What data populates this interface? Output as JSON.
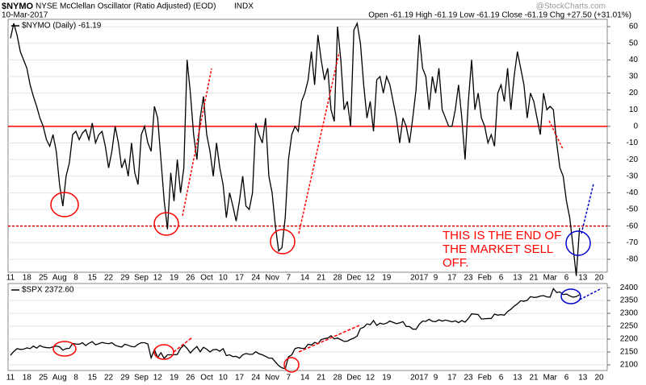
{
  "header": {
    "symbol": "$NYMO",
    "title": "NYSE McClellan Oscillator (Ratio Adjusted) (EOD)",
    "exchange": "INDX",
    "date": "10-Mar-2017",
    "quote": "Open -61.19  High -61.19  Low -61.19  Close -61.19  Chg +27.50 (+31.01%)",
    "watermark": "@StockCharts.com"
  },
  "annotation": [
    "THIS IS THE END OF",
    "THE MARKET SELL",
    "OFF."
  ],
  "chart_data": [
    {
      "type": "line",
      "grid": true,
      "categories": [
        "11",
        null,
        null,
        null,
        null,
        "18",
        null,
        null,
        null,
        null,
        "25",
        null,
        null,
        null,
        null,
        "Aug",
        null,
        null,
        null,
        null,
        "8",
        null,
        null,
        null,
        null,
        "15",
        null,
        null,
        null,
        null,
        "22",
        null,
        null,
        null,
        null,
        "29",
        null,
        null,
        null,
        null,
        "Sep",
        null,
        null,
        null,
        null,
        "12",
        null,
        null,
        null,
        null,
        "19",
        null,
        null,
        null,
        null,
        "26",
        null,
        null,
        null,
        null,
        "Oct",
        null,
        null,
        null,
        null,
        "10",
        null,
        null,
        null,
        null,
        "17",
        null,
        null,
        null,
        null,
        "24",
        null,
        null,
        null,
        null,
        "Nov",
        null,
        null,
        null,
        null,
        "7",
        null,
        null,
        null,
        null,
        "14",
        null,
        null,
        null,
        null,
        "21",
        null,
        null,
        null,
        null,
        "28",
        null,
        null,
        null,
        null,
        "Dec",
        null,
        null,
        null,
        null,
        "12",
        null,
        null,
        null,
        null,
        "19",
        null,
        null,
        null,
        null,
        null,
        null,
        null,
        null,
        null,
        "2017",
        null,
        null,
        null,
        null,
        "9",
        null,
        null,
        null,
        null,
        "17",
        null,
        null,
        null,
        null,
        "23",
        null,
        null,
        null,
        null,
        "Feb",
        null,
        null,
        null,
        null,
        "6",
        null,
        null,
        null,
        null,
        "13",
        null,
        null,
        null,
        null,
        "21",
        null,
        null,
        null,
        null,
        "Mar",
        null,
        null,
        null,
        null,
        "6",
        null,
        null,
        null,
        null,
        "13",
        null,
        null,
        null,
        null,
        "20"
      ],
      "series": [
        {
          "name": "$NYMO (Daily) -61.19",
          "color": "#000000",
          "values": [
            53,
            62,
            55,
            45,
            40,
            35,
            25,
            18,
            12,
            5,
            0,
            -8,
            -12,
            -5,
            -15,
            -35,
            -48,
            -30,
            -22,
            -5,
            -3,
            -8,
            -4,
            -2,
            -8,
            2,
            -10,
            -5,
            -3,
            -12,
            -25,
            -15,
            0,
            -10,
            -25,
            -20,
            -30,
            -10,
            -28,
            -35,
            -5,
            0,
            -10,
            -15,
            12,
            5,
            -20,
            -45,
            -62,
            -28,
            -45,
            -20,
            -40,
            -25,
            40,
            20,
            -5,
            -20,
            5,
            18,
            -5,
            -15,
            -30,
            -10,
            -25,
            -35,
            -55,
            -40,
            -48,
            -57,
            -45,
            -30,
            -48,
            -50,
            -40,
            2,
            -5,
            -10,
            5,
            -30,
            -40,
            -60,
            -75,
            -73,
            -55,
            -20,
            -5,
            0,
            -3,
            15,
            20,
            28,
            45,
            25,
            55,
            40,
            28,
            35,
            10,
            3,
            60,
            40,
            10,
            15,
            0,
            58,
            62,
            50,
            25,
            5,
            15,
            -3,
            28,
            30,
            20,
            30,
            25,
            15,
            5,
            -10,
            5,
            0,
            -10,
            5,
            22,
            55,
            35,
            30,
            10,
            30,
            20,
            35,
            10,
            5,
            0,
            0,
            10,
            25,
            5,
            -20,
            15,
            40,
            10,
            20,
            5,
            0,
            -10,
            -5,
            -12,
            20,
            25,
            15,
            35,
            10,
            30,
            45,
            35,
            25,
            5,
            20,
            15,
            5,
            -5,
            20,
            10,
            12,
            10,
            -10,
            -25,
            -30,
            -45,
            -55,
            -72,
            -90,
            -61.19,
            null,
            null,
            null,
            null,
            null,
            null
          ]
        }
      ],
      "ylim": [
        -87.8,
        64.4
      ],
      "yticks": [
        -80,
        -70,
        -60,
        -50,
        -40,
        -30,
        -20,
        -10,
        0,
        10,
        20,
        30,
        40,
        50,
        60
      ],
      "ref_lines": [
        {
          "value": 0,
          "color": "#ff0000",
          "dash": false
        },
        {
          "value": -60,
          "color": "#dd0000",
          "dash": true
        }
      ]
    },
    {
      "type": "line",
      "grid": true,
      "categories": [
        "11",
        null,
        null,
        null,
        null,
        "18",
        null,
        null,
        null,
        null,
        "25",
        null,
        null,
        null,
        null,
        "Aug",
        null,
        null,
        null,
        null,
        "8",
        null,
        null,
        null,
        null,
        "15",
        null,
        null,
        null,
        null,
        "22",
        null,
        null,
        null,
        null,
        "29",
        null,
        null,
        null,
        null,
        "Sep",
        null,
        null,
        null,
        null,
        "12",
        null,
        null,
        null,
        null,
        "19",
        null,
        null,
        null,
        null,
        "26",
        null,
        null,
        null,
        null,
        "Oct",
        null,
        null,
        null,
        null,
        "10",
        null,
        null,
        null,
        null,
        "17",
        null,
        null,
        null,
        null,
        "24",
        null,
        null,
        null,
        null,
        "Nov",
        null,
        null,
        null,
        null,
        "7",
        null,
        null,
        null,
        null,
        "14",
        null,
        null,
        null,
        null,
        "21",
        null,
        null,
        null,
        null,
        "28",
        null,
        null,
        null,
        null,
        "Dec",
        null,
        null,
        null,
        null,
        "12",
        null,
        null,
        null,
        null,
        "19",
        null,
        null,
        null,
        null,
        null,
        null,
        null,
        null,
        null,
        "2017",
        null,
        null,
        null,
        null,
        "9",
        null,
        null,
        null,
        null,
        "17",
        null,
        null,
        null,
        null,
        "23",
        null,
        null,
        null,
        null,
        "Feb",
        null,
        null,
        null,
        null,
        "6",
        null,
        null,
        null,
        null,
        "13",
        null,
        null,
        null,
        null,
        "21",
        null,
        null,
        null,
        null,
        "Mar",
        null,
        null,
        null,
        null,
        "6",
        null,
        null,
        null,
        null,
        "13",
        null,
        null,
        null,
        null,
        "20"
      ],
      "series": [
        {
          "name": "$SPX 2372.60",
          "color": "#000000",
          "values": [
            2137,
            2152,
            2163,
            2160,
            2161,
            2166,
            2163,
            2173,
            2165,
            2175,
            2169,
            2167,
            2166,
            2170,
            2173,
            2170,
            2157,
            2163,
            2164,
            2183,
            2181,
            2180,
            2186,
            2175,
            2184,
            2190,
            2178,
            2182,
            2187,
            2184,
            2182,
            2186,
            2176,
            2172,
            2169,
            2180,
            2176,
            2171,
            2170,
            2180,
            2186,
            2186,
            2181,
            2127,
            2159,
            2128,
            2147,
            2125,
            2139,
            2139,
            2139,
            2140,
            2164,
            2177,
            2164,
            2146,
            2160,
            2171,
            2151,
            2168,
            2161,
            2150,
            2159,
            2160,
            2153,
            2163,
            2136,
            2139,
            2132,
            2133,
            2126,
            2139,
            2144,
            2141,
            2141,
            2151,
            2143,
            2139,
            2133,
            2126,
            2126,
            2111,
            2097,
            2088,
            2085,
            2131,
            2139,
            2163,
            2167,
            2164,
            2164,
            2180,
            2177,
            2187,
            2182,
            2198,
            2202,
            2204,
            2213,
            2201,
            2204,
            2198,
            2191,
            2192,
            2199,
            2204,
            2212,
            2241,
            2246,
            2259,
            2256,
            2272,
            2253,
            2262,
            2258,
            2262,
            2270,
            2265,
            2260,
            2263,
            2268,
            2249,
            2249,
            2239,
            2238,
            2258,
            2270,
            2269,
            2277,
            2269,
            2268,
            2275,
            2270,
            2274,
            2271,
            2267,
            2271,
            2264,
            2272,
            2266,
            2280,
            2298,
            2297,
            2295,
            2278,
            2279,
            2280,
            2280,
            2297,
            2293,
            2295,
            2293,
            2307,
            2316,
            2328,
            2337,
            2349,
            2347,
            2351,
            2365,
            2362,
            2363,
            2367,
            2369,
            2364,
            2363,
            2396,
            2381,
            2383,
            2373,
            2375,
            2368,
            2363,
            2365,
            2372.6,
            null,
            null,
            null,
            null,
            null,
            null
          ]
        }
      ],
      "ylim": [
        2078,
        2416
      ],
      "yticks": [
        2100,
        2150,
        2200,
        2250,
        2300,
        2350,
        2400
      ]
    }
  ]
}
